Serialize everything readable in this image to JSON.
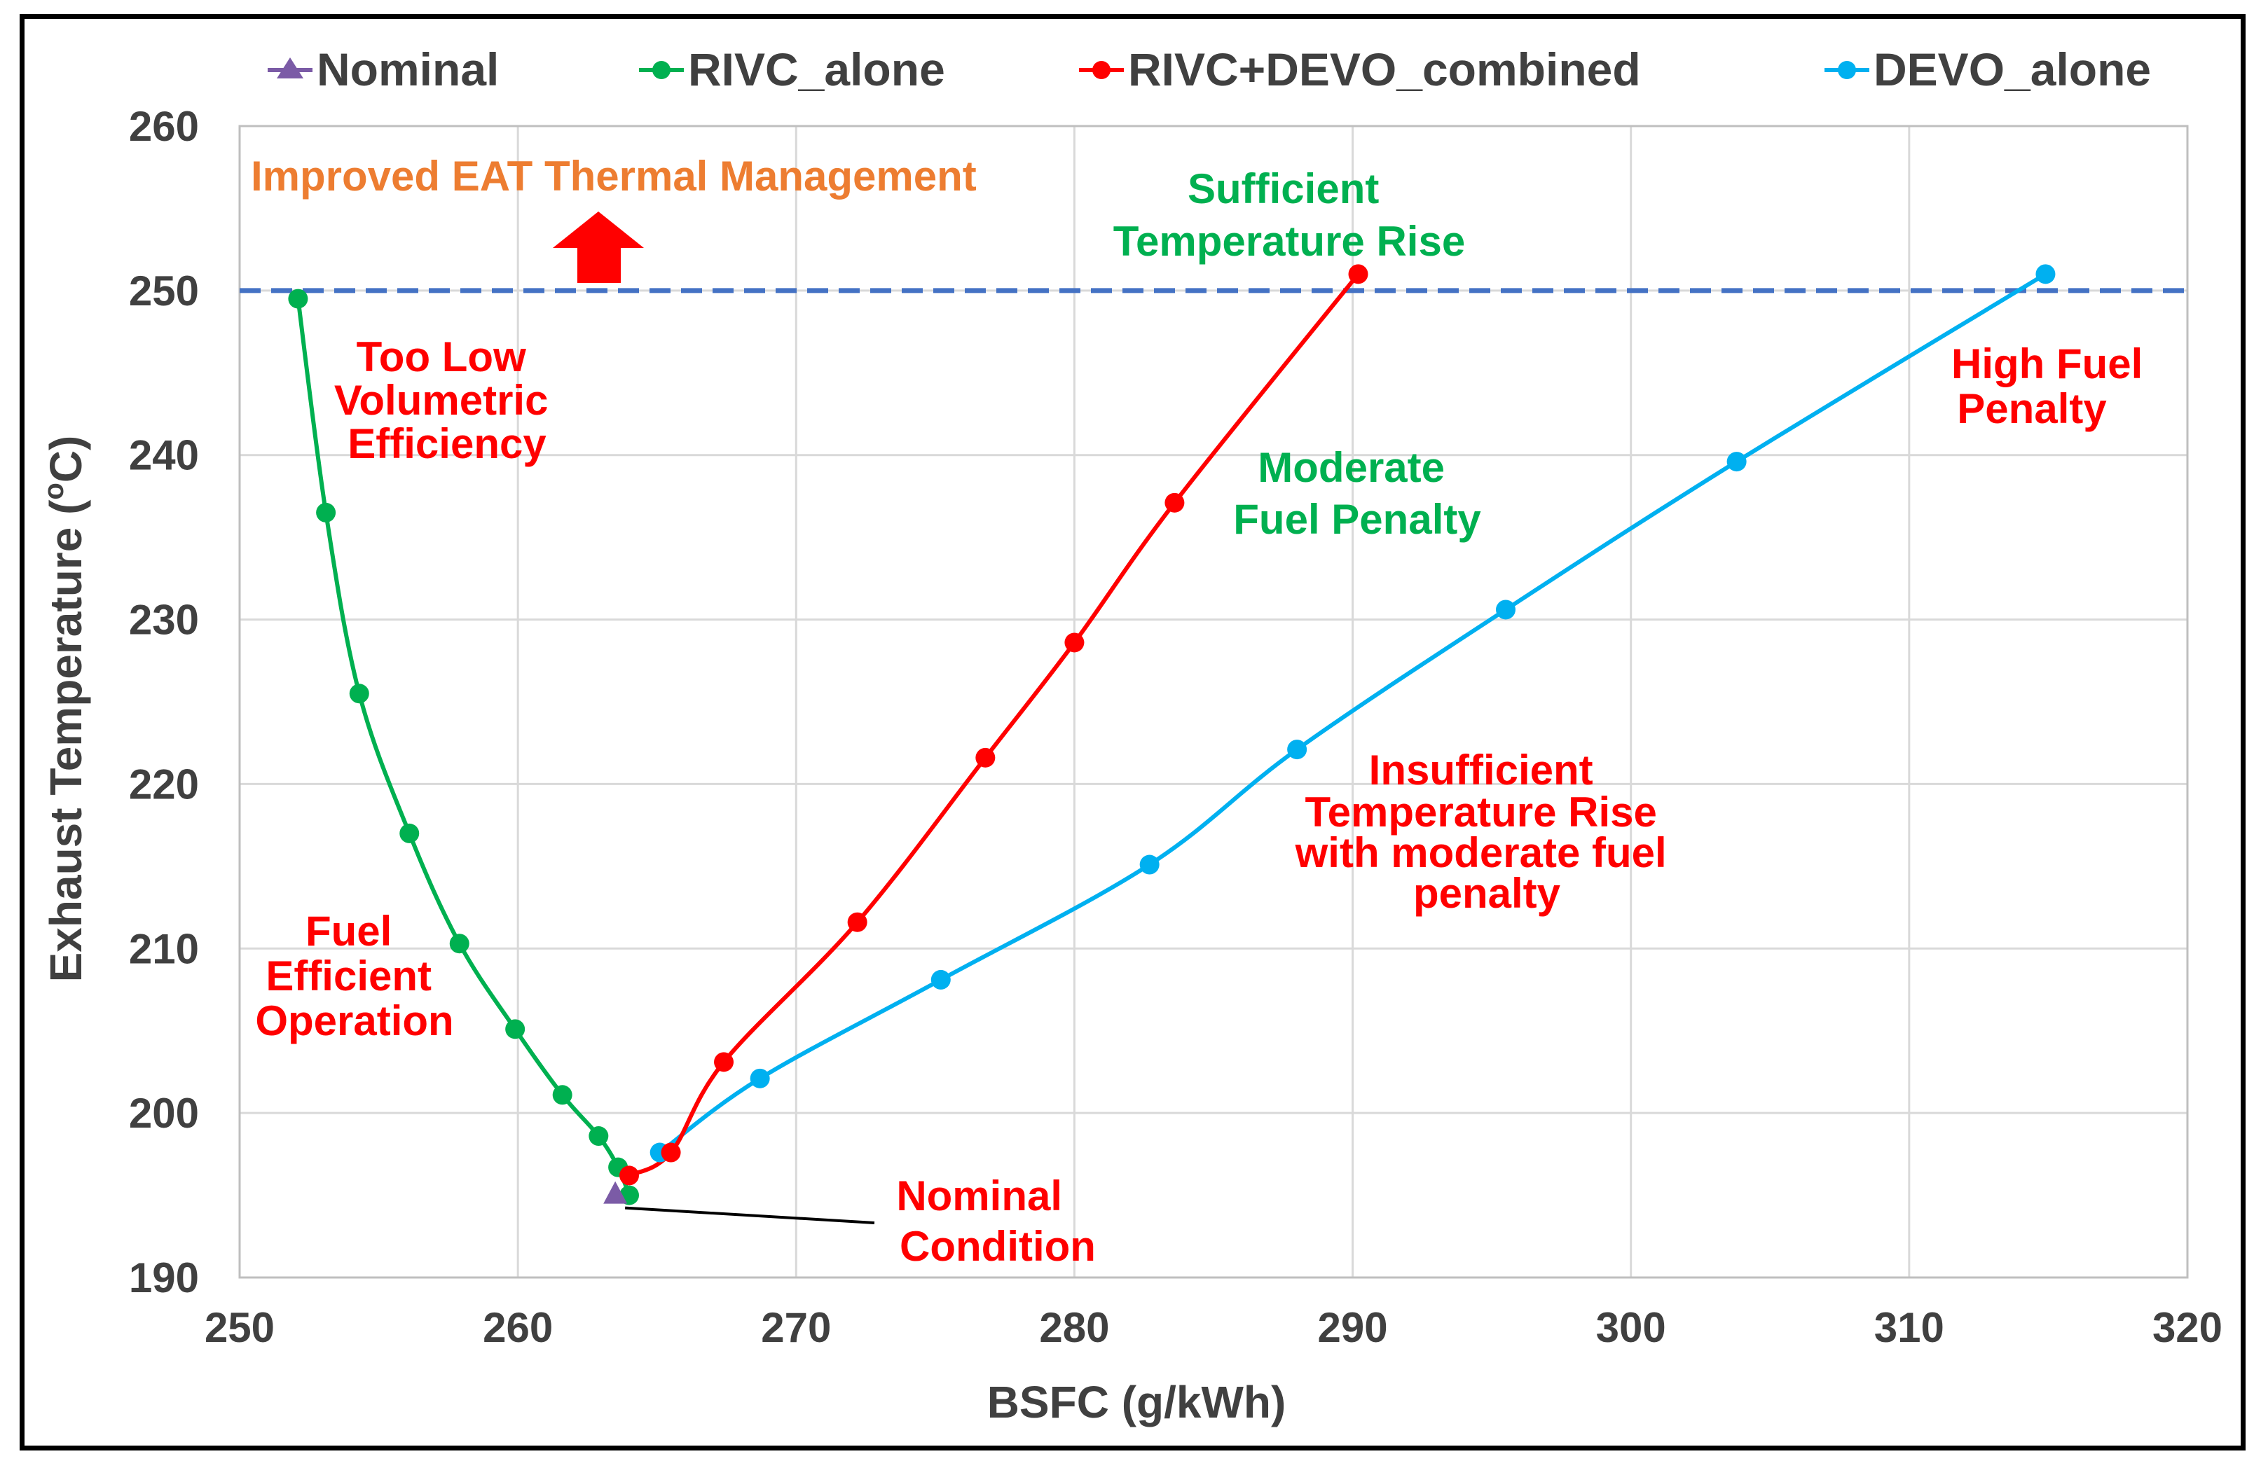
{
  "chart_data": {
    "type": "line",
    "xlabel": "BSFC (g/kWh)",
    "ylabel": "Exhaust Temperature (oC)",
    "ylabel_main": "Exhaust Temperature (",
    "ylabel_sup": "o",
    "ylabel_end": "C)",
    "xlim": [
      250,
      320
    ],
    "ylim": [
      190,
      260
    ],
    "xticks": [
      250,
      260,
      270,
      280,
      290,
      300,
      310,
      320
    ],
    "yticks": [
      190,
      200,
      210,
      220,
      230,
      240,
      250,
      260
    ],
    "grid": true,
    "legend_position": "top",
    "threshold": {
      "y": 250,
      "color": "#4472C4",
      "style": "dashed"
    },
    "series": [
      {
        "name": "Nominal",
        "color": "#7B5BA6",
        "marker": "triangle",
        "x": [
          263.5
        ],
        "y": [
          195.0
        ]
      },
      {
        "name": "RIVC_alone",
        "color": "#00B050",
        "marker": "circle",
        "x": [
          252.1,
          253.1,
          254.3,
          256.1,
          257.9,
          259.9,
          261.6,
          262.9,
          263.6,
          264.0
        ],
        "y": [
          249.5,
          236.5,
          225.5,
          217.0,
          210.3,
          205.1,
          201.1,
          198.6,
          196.7,
          195.0
        ]
      },
      {
        "name": "RIVC+DEVO_combined",
        "color": "#FF0000",
        "marker": "circle",
        "x": [
          264.0,
          265.5,
          267.4,
          272.2,
          276.8,
          280.0,
          283.6,
          290.2
        ],
        "y": [
          196.2,
          197.6,
          203.1,
          211.6,
          221.6,
          228.6,
          237.1,
          251.0
        ]
      },
      {
        "name": "DEVO_alone",
        "color": "#00B0F0",
        "marker": "circle",
        "x": [
          265.1,
          268.7,
          275.2,
          282.7,
          288.0,
          295.5,
          303.8,
          314.9
        ],
        "y": [
          197.6,
          202.1,
          208.1,
          215.1,
          222.1,
          230.6,
          239.6,
          251.0
        ]
      }
    ],
    "annotations": [
      {
        "key": "eat",
        "text": "Improved EAT Thermal Management",
        "color": "#ED7D31"
      },
      {
        "key": "sufficient",
        "lines": [
          "Sufficient",
          "Temperature Rise"
        ],
        "color": "#00B050"
      },
      {
        "key": "too_low",
        "lines": [
          "Too Low",
          "Volumetric",
          "Efficiency"
        ],
        "color": "#FF0000"
      },
      {
        "key": "high_fuel",
        "lines": [
          "High Fuel",
          "Penalty"
        ],
        "color": "#FF0000"
      },
      {
        "key": "moderate",
        "lines": [
          "Moderate",
          "Fuel Penalty"
        ],
        "color": "#00B050"
      },
      {
        "key": "insufficient",
        "lines": [
          "Insufficient",
          "Temperature Rise",
          "with moderate fuel",
          "penalty"
        ],
        "color": "#FF0000"
      },
      {
        "key": "fuel_eff",
        "lines": [
          "Fuel",
          "Efficient",
          "Operation"
        ],
        "color": "#FF0000"
      },
      {
        "key": "nominal_cond",
        "lines": [
          "Nominal",
          "Condition"
        ],
        "color": "#FF0000"
      }
    ]
  },
  "colors": {
    "grid": "#D9D9D9",
    "axis": "#BFBFBF",
    "arrow": "#FF0000",
    "leader": "#000000"
  }
}
